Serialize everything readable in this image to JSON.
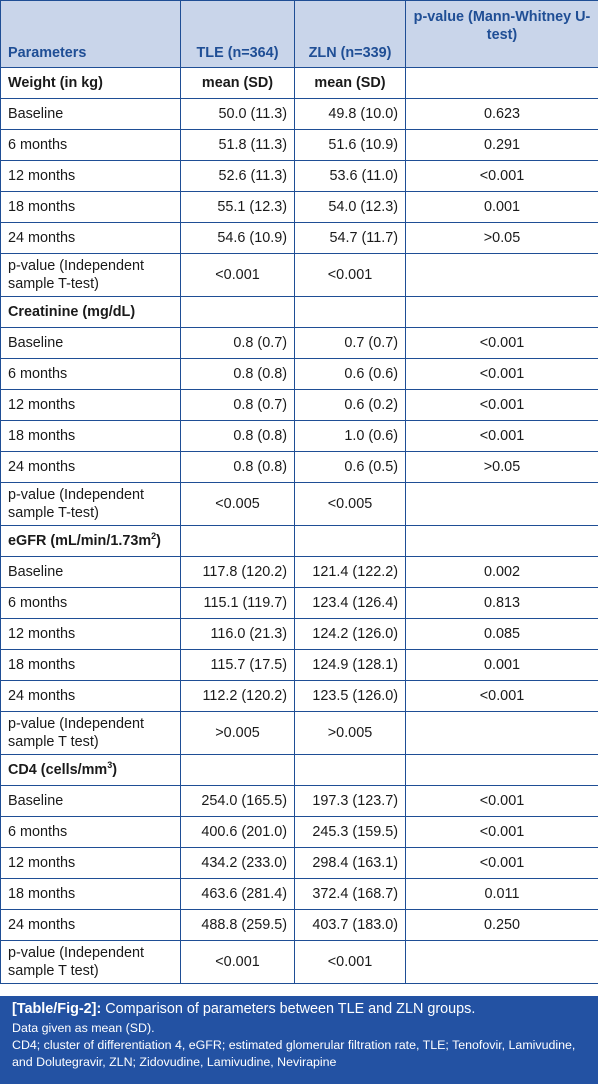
{
  "header": {
    "col0": "Parameters",
    "col1": "TLE (n=364)",
    "col2": "ZLN (n=339)",
    "col3": "p-value (Mann-Whitney U-test)"
  },
  "sections": [
    {
      "title": "Weight (in kg)",
      "sub1": "mean (SD)",
      "sub2": "mean (SD)",
      "rows": [
        {
          "label": "Baseline",
          "tle": "50.0 (11.3)",
          "zln": "49.8 (10.0)",
          "p": "0.623"
        },
        {
          "label": "6 months",
          "tle": "51.8 (11.3)",
          "zln": "51.6 (10.9)",
          "p": "0.291"
        },
        {
          "label": "12 months",
          "tle": "52.6 (11.3)",
          "zln": "53.6 (11.0)",
          "p": "<0.001"
        },
        {
          "label": "18 months",
          "tle": "55.1 (12.3)",
          "zln": "54.0 (12.3)",
          "p": "0.001"
        },
        {
          "label": "24 months",
          "tle": "54.6 (10.9)",
          "zln": "54.7 (11.7)",
          "p": ">0.05"
        }
      ],
      "ttest": {
        "label": "p-value (Independent sample T-test)",
        "tle": "<0.001",
        "zln": "<0.001"
      }
    },
    {
      "title": "Creatinine (mg/dL)",
      "rows": [
        {
          "label": "Baseline",
          "tle": "0.8 (0.7)",
          "zln": "0.7 (0.7)",
          "p": "<0.001"
        },
        {
          "label": "6 months",
          "tle": "0.8 (0.8)",
          "zln": "0.6 (0.6)",
          "p": "<0.001"
        },
        {
          "label": "12 months",
          "tle": "0.8 (0.7)",
          "zln": "0.6 (0.2)",
          "p": "<0.001"
        },
        {
          "label": "18 months",
          "tle": "0.8 (0.8)",
          "zln": "1.0 (0.6)",
          "p": "<0.001"
        },
        {
          "label": "24 months",
          "tle": "0.8 (0.8)",
          "zln": "0.6 (0.5)",
          "p": ">0.05"
        }
      ],
      "ttest": {
        "label": "p-value (Independent sample T-test)",
        "tle": "<0.005",
        "zln": "<0.005"
      }
    },
    {
      "title": "eGFR (mL/min/1.73m",
      "title_sup": "2",
      "title_end": ")",
      "rows": [
        {
          "label": "Baseline",
          "tle": "117.8 (120.2)",
          "zln": "121.4 (122.2)",
          "p": "0.002"
        },
        {
          "label": "6 months",
          "tle": "115.1 (119.7)",
          "zln": "123.4 (126.4)",
          "p": "0.813"
        },
        {
          "label": "12 months",
          "tle": "116.0 (21.3)",
          "zln": "124.2 (126.0)",
          "p": "0.085"
        },
        {
          "label": "18 months",
          "tle": "115.7 (17.5)",
          "zln": "124.9 (128.1)",
          "p": "0.001"
        },
        {
          "label": "24 months",
          "tle": "112.2 (120.2)",
          "zln": "123.5 (126.0)",
          "p": "<0.001"
        }
      ],
      "ttest": {
        "label": "p-value (Independent sample T test)",
        "tle": ">0.005",
        "zln": ">0.005"
      }
    },
    {
      "title": "CD4 (cells/mm",
      "title_sup": "3",
      "title_end": ")",
      "rows": [
        {
          "label": "Baseline",
          "tle": "254.0 (165.5)",
          "zln": "197.3 (123.7)",
          "p": "<0.001"
        },
        {
          "label": "6 months",
          "tle": "400.6 (201.0)",
          "zln": "245.3 (159.5)",
          "p": "<0.001"
        },
        {
          "label": "12 months",
          "tle": "434.2 (233.0)",
          "zln": "298.4 (163.1)",
          "p": "<0.001"
        },
        {
          "label": "18 months",
          "tle": "463.6 (281.4)",
          "zln": "372.4 (168.7)",
          "p": "0.011"
        },
        {
          "label": "24 months",
          "tle": "488.8 (259.5)",
          "zln": "403.7 (183.0)",
          "p": "0.250"
        }
      ],
      "ttest": {
        "label": "p-value (Independent sample T test)",
        "tle": "<0.001",
        "zln": "<0.001"
      }
    }
  ],
  "caption": {
    "tag": "[Table/Fig-2]:",
    "title": " Comparison of parameters between TLE and ZLN groups.",
    "note1": "Data given as mean (SD).",
    "note2": "CD4; cluster of differentiation 4, eGFR; estimated glomerular filtration rate, TLE; Tenofovir, Lamivudine, and Dolutegravir, ZLN; Zidovudine, Lamivudine, Nevirapine"
  },
  "colors": {
    "header_bg": "#c9d5ea",
    "header_text": "#1f4e95",
    "border": "#1f4e95",
    "caption_bg": "#2352a3"
  }
}
